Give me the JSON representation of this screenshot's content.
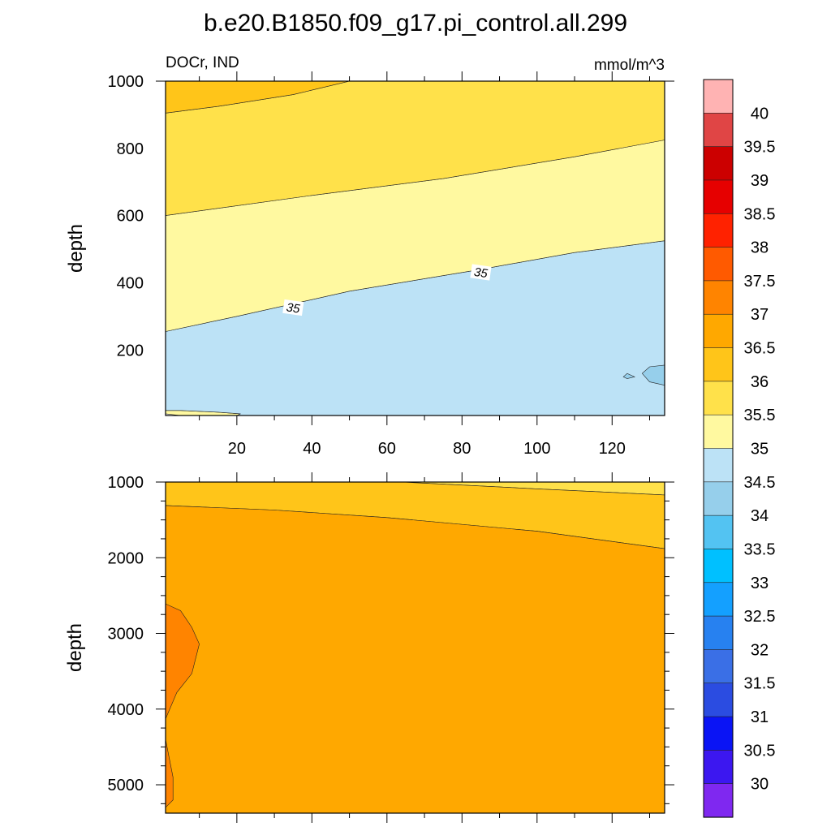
{
  "title": "b.e20.B1850.f09_g17.pi_control.all.299",
  "subtitle_left": "DOCr, IND",
  "subtitle_right": "mmol/m^3",
  "colorbar": {
    "labels": [
      "40",
      "39.5",
      "39",
      "38.5",
      "38",
      "37.5",
      "37",
      "36.5",
      "36",
      "35.5",
      "35",
      "34.5",
      "34",
      "33.5",
      "33",
      "32.5",
      "32",
      "31.5",
      "31",
      "30.5",
      "30"
    ],
    "colors": [
      "#ffb3b3",
      "#e04545",
      "#cc0000",
      "#e60000",
      "#ff2200",
      "#ff5a00",
      "#ff8400",
      "#ffa800",
      "#ffc519",
      "#ffe14a",
      "#fff9a0",
      "#bce2f6",
      "#96cfeb",
      "#53c3f2",
      "#00c0ff",
      "#14a0ff",
      "#2781f0",
      "#3a6fe6",
      "#2b4ce1",
      "#0a14f5",
      "#3c17f0",
      "#7f28f0"
    ]
  },
  "chart_data": [
    {
      "type": "contour",
      "panel": "upper",
      "xlabel": "",
      "ylabel": "depth",
      "xlim": [
        1,
        134
      ],
      "ylim": [
        1000,
        5
      ],
      "xticks": [
        20,
        40,
        60,
        80,
        100,
        120
      ],
      "yticks": [
        200,
        400,
        600,
        800,
        1000
      ],
      "contour_labels": [
        {
          "text": "35",
          "x": 35,
          "y": 325
        },
        {
          "text": "35",
          "x": 85,
          "y": 430
        }
      ],
      "regions": [
        {
          "level": "35.5-36",
          "color": "#fff9a0",
          "boundary": [
            [
              1,
              10
            ],
            [
              5,
              5
            ],
            [
              20,
              5
            ],
            [
              21,
              10
            ],
            [
              15,
              15
            ],
            [
              5,
              20
            ],
            [
              1,
              20
            ]
          ]
        },
        {
          "level": "34.5-35",
          "color": "#bce2f6",
          "boundary": [
            [
              1,
              20
            ],
            [
              5,
              20
            ],
            [
              15,
              15
            ],
            [
              21,
              10
            ],
            [
              20,
              5
            ],
            [
              134,
              5
            ],
            [
              134,
              525
            ],
            [
              110,
              490
            ],
            [
              85,
              440
            ],
            [
              50,
              375
            ],
            [
              20,
              300
            ],
            [
              1,
              255
            ]
          ]
        },
        {
          "level": "34-34.5",
          "color": "#96cfeb",
          "boundary": [
            [
              134,
              95
            ],
            [
              130,
              105
            ],
            [
              128,
              130
            ],
            [
              130,
              150
            ],
            [
              134,
              155
            ]
          ]
        },
        {
          "level": "34-34.5",
          "color": "#96cfeb",
          "boundary": [
            [
              123,
              120
            ],
            [
              124,
              115
            ],
            [
              126,
              120
            ],
            [
              124,
              130
            ]
          ]
        },
        {
          "level": "35-35.5",
          "color": "#fff9a0",
          "boundary": [
            [
              1,
              255
            ],
            [
              20,
              300
            ],
            [
              50,
              375
            ],
            [
              85,
              440
            ],
            [
              110,
              490
            ],
            [
              134,
              525
            ],
            [
              134,
              825
            ],
            [
              110,
              775
            ],
            [
              75,
              710
            ],
            [
              40,
              660
            ],
            [
              1,
              600
            ]
          ]
        },
        {
          "level": "35.5-36",
          "color": "#ffe14a",
          "boundary": [
            [
              1,
              600
            ],
            [
              40,
              660
            ],
            [
              75,
              710
            ],
            [
              110,
              775
            ],
            [
              134,
              825
            ],
            [
              134,
              1000
            ],
            [
              50,
              1000
            ],
            [
              35,
              960
            ],
            [
              15,
              925
            ],
            [
              1,
              905
            ]
          ]
        },
        {
          "level": "36-36.5",
          "color": "#ffc519",
          "boundary": [
            [
              1,
              905
            ],
            [
              15,
              925
            ],
            [
              35,
              960
            ],
            [
              50,
              1000
            ],
            [
              1,
              1000
            ]
          ]
        }
      ]
    },
    {
      "type": "contour",
      "panel": "lower",
      "xlabel": "",
      "ylabel": "depth",
      "xlim": [
        1,
        134
      ],
      "ylim": [
        1000,
        5375
      ],
      "xticks": [
        20,
        40,
        60,
        80,
        100,
        120
      ],
      "yticks": [
        1000,
        2000,
        3000,
        4000,
        5000
      ],
      "regions": [
        {
          "level": "35.5-36",
          "color": "#ffe14a",
          "boundary": [
            [
              64,
              1000
            ],
            [
              134,
              1000
            ],
            [
              134,
              1170
            ],
            [
              100,
              1090
            ]
          ]
        },
        {
          "level": "36-36.5",
          "color": "#ffc519",
          "boundary": [
            [
              1,
              1000
            ],
            [
              64,
              1000
            ],
            [
              100,
              1090
            ],
            [
              134,
              1170
            ],
            [
              134,
              1880
            ],
            [
              100,
              1650
            ],
            [
              60,
              1470
            ],
            [
              30,
              1370
            ],
            [
              1,
              1310
            ]
          ]
        },
        {
          "level": "36.5-37",
          "color": "#ffa800",
          "boundary": [
            [
              1,
              1310
            ],
            [
              30,
              1370
            ],
            [
              60,
              1470
            ],
            [
              100,
              1650
            ],
            [
              134,
              1880
            ],
            [
              134,
              5375
            ],
            [
              1,
              5375
            ]
          ]
        },
        {
          "level": "37-37.5",
          "color": "#ff8400",
          "boundary": [
            [
              1,
              2610
            ],
            [
              5,
              2700
            ],
            [
              8,
              2920
            ],
            [
              10,
              3140
            ],
            [
              8,
              3530
            ],
            [
              4,
              3780
            ],
            [
              1,
              4130
            ]
          ]
        },
        {
          "level": "37-37.5",
          "color": "#ff8400",
          "boundary": [
            [
              1,
              4400
            ],
            [
              2,
              4650
            ],
            [
              3,
              4900
            ],
            [
              3,
              5200
            ],
            [
              1,
              5300
            ]
          ]
        }
      ]
    }
  ]
}
